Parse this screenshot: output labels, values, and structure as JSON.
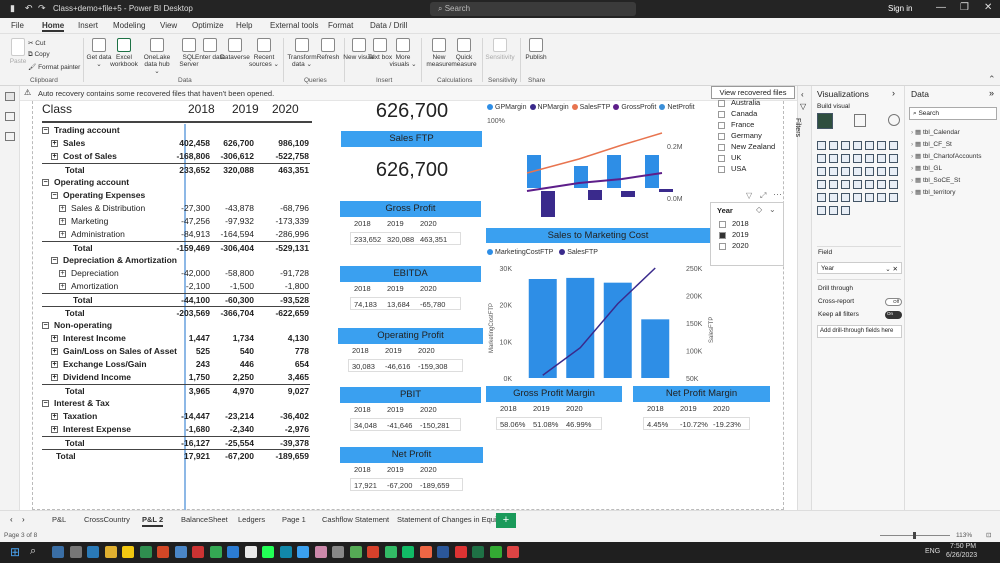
{
  "window": {
    "title": "Class+demo+file+5 - Power BI Desktop",
    "search_placeholder": "Search",
    "signin": "Sign in"
  },
  "menu": [
    "File",
    "Home",
    "Insert",
    "Modeling",
    "View",
    "Optimize",
    "Help",
    "External tools",
    "Format",
    "Data / Drill"
  ],
  "ribbon": {
    "clipboard": {
      "paste": "Paste",
      "cut": "Cut",
      "copy": "Copy",
      "format_painter": "Format painter",
      "group": "Clipboard"
    },
    "data": [
      {
        "label": "Get data ⌄"
      },
      {
        "label": "Excel workbook"
      },
      {
        "label": "OneLake data hub ⌄"
      },
      {
        "label": "SQL Server"
      },
      {
        "label": "Enter data"
      },
      {
        "label": "Dataverse"
      },
      {
        "label": "Recent sources ⌄"
      }
    ],
    "data_group": "Data",
    "queries": [
      {
        "label": "Transform data ⌄"
      },
      {
        "label": "Refresh"
      }
    ],
    "queries_group": "Queries",
    "insert": [
      {
        "label": "New visual"
      },
      {
        "label": "Text box"
      },
      {
        "label": "More visuals ⌄"
      }
    ],
    "insert_group": "Insert",
    "calc": [
      {
        "label": "New measure"
      },
      {
        "label": "Quick measure"
      }
    ],
    "calc_group": "Calculations",
    "sensitivity": {
      "label": "Sensitivity"
    },
    "sensitivity_group": "Sensitivity",
    "share": {
      "label": "Publish"
    },
    "share_group": "Share"
  },
  "notification": {
    "message": "Auto recovery contains some recovered files that haven't been opened.",
    "button": "View recovered files"
  },
  "matrix": {
    "header": {
      "label": "Class",
      "y1": "2018",
      "y2": "2019",
      "y3": "2020"
    },
    "rows": [
      {
        "label": "Trading account",
        "l": 1,
        "b": true,
        "icon": "minus",
        "v": [
          "",
          "",
          ""
        ]
      },
      {
        "label": "Sales",
        "l": 2,
        "b": true,
        "icon": "plus",
        "v": [
          "402,458",
          "626,700",
          "986,109"
        ]
      },
      {
        "label": "Cost of Sales",
        "l": 2,
        "b": true,
        "icon": "plus",
        "v": [
          "-168,806",
          "-306,612",
          "-522,758"
        ]
      },
      {
        "label": "Total",
        "l": 2,
        "b": true,
        "icon": "",
        "v": [
          "233,652",
          "320,088",
          "463,351"
        ],
        "tl": true
      },
      {
        "label": "Operating account",
        "l": 1,
        "b": true,
        "icon": "minus",
        "v": [
          "",
          "",
          ""
        ]
      },
      {
        "label": "Operating Expenses",
        "l": 2,
        "b": true,
        "icon": "minus",
        "v": [
          "",
          "",
          ""
        ]
      },
      {
        "label": "Sales & Distribution",
        "l": 3,
        "b": false,
        "icon": "plus",
        "v": [
          "-27,300",
          "-43,878",
          "-68,796"
        ]
      },
      {
        "label": "Marketing",
        "l": 3,
        "b": false,
        "icon": "plus",
        "v": [
          "-47,256",
          "-97,932",
          "-173,339"
        ]
      },
      {
        "label": "Administration",
        "l": 3,
        "b": false,
        "icon": "plus",
        "v": [
          "-84,913",
          "-164,594",
          "-286,996"
        ]
      },
      {
        "label": "Total",
        "l": 3,
        "b": true,
        "icon": "",
        "v": [
          "-159,469",
          "-306,404",
          "-529,131"
        ],
        "tl": true
      },
      {
        "label": "Depreciation & Amortization",
        "l": 2,
        "b": true,
        "icon": "minus",
        "v": [
          "",
          "",
          ""
        ]
      },
      {
        "label": "Depreciation",
        "l": 3,
        "b": false,
        "icon": "plus",
        "v": [
          "-42,000",
          "-58,800",
          "-91,728"
        ]
      },
      {
        "label": "Amortization",
        "l": 3,
        "b": false,
        "icon": "plus",
        "v": [
          "-2,100",
          "-1,500",
          "-1,800"
        ]
      },
      {
        "label": "Total",
        "l": 3,
        "b": true,
        "icon": "",
        "v": [
          "-44,100",
          "-60,300",
          "-93,528"
        ],
        "tl": true
      },
      {
        "label": "Total",
        "l": 2,
        "b": true,
        "icon": "",
        "v": [
          "-203,569",
          "-366,704",
          "-622,659"
        ],
        "tl": true
      },
      {
        "label": "Non-operating",
        "l": 1,
        "b": true,
        "icon": "minus",
        "v": [
          "",
          "",
          ""
        ]
      },
      {
        "label": "Interest Income",
        "l": 2,
        "b": true,
        "icon": "plus",
        "v": [
          "1,447",
          "1,734",
          "4,130"
        ]
      },
      {
        "label": "Gain/Loss on Sales of Asset",
        "l": 2,
        "b": true,
        "icon": "plus",
        "v": [
          "525",
          "540",
          "778"
        ]
      },
      {
        "label": "Exchange Loss/Gain",
        "l": 2,
        "b": true,
        "icon": "plus",
        "v": [
          "243",
          "446",
          "654"
        ]
      },
      {
        "label": "Dividend Income",
        "l": 2,
        "b": true,
        "icon": "plus",
        "v": [
          "1,750",
          "2,250",
          "3,465"
        ]
      },
      {
        "label": "Total",
        "l": 2,
        "b": true,
        "icon": "",
        "v": [
          "3,965",
          "4,970",
          "9,027"
        ],
        "tl": true
      },
      {
        "label": "Interest & Tax",
        "l": 1,
        "b": true,
        "icon": "minus",
        "v": [
          "",
          "",
          ""
        ]
      },
      {
        "label": "Taxation",
        "l": 2,
        "b": true,
        "icon": "plus",
        "v": [
          "-14,447",
          "-23,214",
          "-36,402"
        ]
      },
      {
        "label": "Interest Expense",
        "l": 2,
        "b": true,
        "icon": "plus",
        "v": [
          "-1,680",
          "-2,340",
          "-2,976"
        ]
      },
      {
        "label": "Total",
        "l": 2,
        "b": true,
        "icon": "",
        "v": [
          "-16,127",
          "-25,554",
          "-39,378"
        ],
        "tl": true
      },
      {
        "label": "Total",
        "l": 1,
        "b": true,
        "icon": "",
        "v": [
          "17,921",
          "-67,200",
          "-189,659"
        ],
        "tl": true
      }
    ]
  },
  "kpis": {
    "top_value": "626,700",
    "sales_ftp": {
      "title": "Sales FTP",
      "value": "626,700"
    },
    "gross_profit": {
      "title": "Gross Profit",
      "years": [
        "2018",
        "2019",
        "2020"
      ],
      "values": [
        "233,652",
        "320,088",
        "463,351"
      ]
    },
    "ebitda": {
      "title": "EBITDA",
      "years": [
        "2018",
        "2019",
        "2020"
      ],
      "values": [
        "74,183",
        "13,684",
        "-65,780"
      ]
    },
    "operating_profit": {
      "title": "Operating Profit",
      "years": [
        "2018",
        "2019",
        "2020"
      ],
      "values": [
        "30,083",
        "-46,616",
        "-159,308"
      ]
    },
    "pbit": {
      "title": "PBIT",
      "years": [
        "2018",
        "2019",
        "2020"
      ],
      "values": [
        "34,048",
        "-41,646",
        "-150,281"
      ]
    },
    "net_profit": {
      "title": "Net Profit",
      "years": [
        "2018",
        "2019",
        "2020"
      ],
      "values": [
        "17,921",
        "-67,200",
        "-189,659"
      ]
    },
    "gross_profit_margin": {
      "title": "Gross Profit Margin",
      "years": [
        "2018",
        "2019",
        "2020"
      ],
      "values": [
        "58.06%",
        "51.08%",
        "46.99%"
      ]
    },
    "net_profit_margin": {
      "title": "Net Profit Margin",
      "years": [
        "2018",
        "2019",
        "2020"
      ],
      "values": [
        "4.45%",
        "-10.72%",
        "-19.23%"
      ]
    }
  },
  "top_chart": {
    "legend": [
      "GPMargin",
      "NPMargin",
      "SalesFTP",
      "GrossProfit",
      "NetProfit"
    ],
    "legend_colors": [
      "#2e8ee6",
      "#3a2a8c",
      "#e8744f",
      "#5d1e8a",
      "#3a8fd9"
    ],
    "left_tick": "100%",
    "right_ticks": [
      "0.2M",
      "0.0M"
    ]
  },
  "chart_data": {
    "type": "bar",
    "title": "Sales to Marketing Cost",
    "categories": [
      "1",
      "2",
      "3",
      "4"
    ],
    "series": [
      {
        "name": "MarketingCostFTP",
        "type": "bar",
        "values": [
          27000,
          27300,
          26000,
          16000
        ]
      },
      {
        "name": "SalesFTP",
        "type": "line",
        "values": [
          55000,
          105000,
          185000,
          250000
        ]
      }
    ],
    "ylabel": "MarketingCostFTP",
    "y2label": "SalesFTP",
    "ylim": [
      0,
      30000
    ],
    "y2lim": [
      50000,
      250000
    ],
    "y_ticks": [
      "30K",
      "20K",
      "10K",
      "0K"
    ],
    "y2_ticks": [
      "250K",
      "200K",
      "150K",
      "100K",
      "50K"
    ],
    "colors": {
      "bar": "#2e8ee6",
      "line": "#3a2a8c"
    }
  },
  "country_slicer": [
    "Australia",
    "Canada",
    "France",
    "Germany",
    "New Zealand",
    "UK",
    "USA"
  ],
  "year_slicer": {
    "title": "Year",
    "items": [
      "2018",
      "2019",
      "2020"
    ]
  },
  "visualizations_pane": {
    "title": "Visualizations",
    "build_visual": "Build visual",
    "field_label": "Field",
    "field_value": "Year",
    "drill_through": "Drill through",
    "cross_report": "Cross-report",
    "cross_report_state": "Off",
    "keep_all_filters": "Keep all filters",
    "keep_state": "On",
    "add_fields": "Add drill-through fields here"
  },
  "filters_label": "Filters",
  "data_pane": {
    "title": "Data",
    "search_placeholder": "Search",
    "tables": [
      "tbl_Calendar",
      "tbl_CF_St",
      "tbl_ChartofAccounts",
      "tbl_GL",
      "tbl_SoCE_St",
      "tbl_territory"
    ]
  },
  "page_tabs": [
    "P&L",
    "CrossCountry",
    "P&L 2",
    "BalanceSheet",
    "Ledgers",
    "Page 1",
    "Cashflow Statement",
    "Statement of Changes in Equity"
  ],
  "active_tab": "P&L 2",
  "status": {
    "page": "Page 3 of 8",
    "zoom": "113%"
  },
  "taskbar": {
    "lang": "ENG",
    "time": "7:50 PM",
    "date": "6/26/2023"
  }
}
